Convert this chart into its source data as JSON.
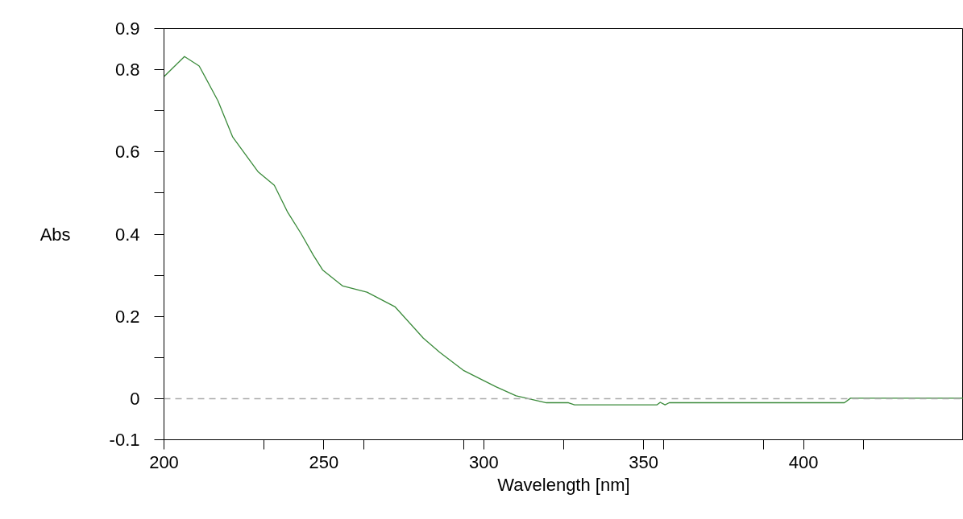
{
  "chart_data": {
    "type": "line",
    "xlabel": "Wavelength [nm]",
    "ylabel": "Abs",
    "x": [
      200,
      206.4,
      211.0,
      216.9,
      221.5,
      229.5,
      234.5,
      238.7,
      242.9,
      246.7,
      249.6,
      255.9,
      263.5,
      272.3,
      281.1,
      286.2,
      293.8,
      303.8,
      310.1,
      319.6,
      326.5,
      328.4,
      354.2,
      355.2,
      356.7,
      358.0,
      412.8,
      414.7,
      450
    ],
    "series": [
      {
        "color": "#3a8a3a",
        "values": [
          0.783,
          0.832,
          0.809,
          0.724,
          0.636,
          0.551,
          0.519,
          0.453,
          0.401,
          0.349,
          0.313,
          0.274,
          0.259,
          0.223,
          0.147,
          0.113,
          0.068,
          0.029,
          0.007,
          -0.01,
          -0.01,
          -0.015,
          -0.015,
          -0.009,
          -0.015,
          -0.01,
          -0.01,
          0.001,
          0.001
        ]
      }
    ],
    "xlim": [
      200,
      450
    ],
    "xticks": [
      200,
      {
        "value": 231.25,
        "label": null
      },
      250,
      {
        "value": 262.5,
        "label": null
      },
      {
        "value": 293.75,
        "label": null
      },
      300,
      {
        "value": 325,
        "label": null
      },
      350,
      {
        "value": 356.25,
        "label": null
      },
      {
        "value": 387.5,
        "label": null
      },
      400,
      {
        "value": 418.75,
        "label": null
      }
    ],
    "ylim": [
      -0.1,
      0.9
    ],
    "yticks": [
      -0.1,
      0,
      {
        "value": 0.1,
        "label": null
      },
      0.2,
      {
        "value": 0.3,
        "label": null
      },
      0.4,
      {
        "value": 0.5,
        "label": null
      },
      0.6,
      {
        "value": 0.7,
        "label": null
      },
      0.8,
      0.9
    ],
    "ref_lines": [
      {
        "axis": "y",
        "value": 0,
        "color": "#aaaaaa",
        "line_style": "dashed"
      }
    ],
    "line_style": "solid"
  }
}
